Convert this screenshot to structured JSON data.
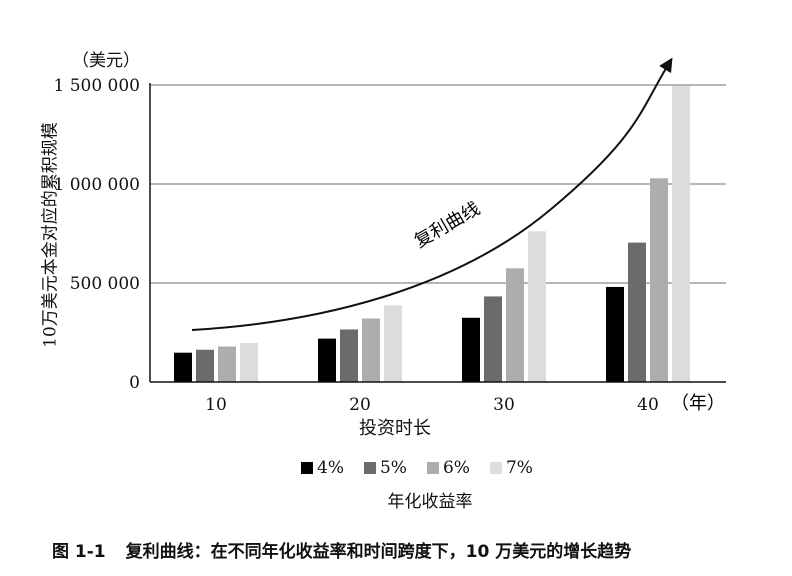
{
  "figure": {
    "y_unit": "（美元）",
    "y_title": "10万美元本金对应的累积规模",
    "x_title": "投资时长",
    "x_unit": "（年）",
    "legend_title": "年化收益率",
    "curve_label": "复利曲线",
    "caption_number": "图 1-1",
    "caption_text": "复利曲线：在不同年化收益率和时间跨度下，10 万美元的增长趋势"
  },
  "chart_data": {
    "type": "bar",
    "title": "",
    "xlabel": "投资时长",
    "ylabel": "10万美元本金对应的累积规模",
    "categories": [
      "10",
      "20",
      "30",
      "40"
    ],
    "ylim": [
      0,
      1500000
    ],
    "yticks": [
      0,
      500000,
      1000000,
      1500000
    ],
    "ytick_labels": [
      "0",
      "500 000",
      "1 000 000",
      "1 500 000"
    ],
    "grid": "horizontal",
    "legend_position": "bottom",
    "series": [
      {
        "name": "4%",
        "color": "#000000",
        "values": [
          148024,
          219112,
          324340,
          480102
        ]
      },
      {
        "name": "5%",
        "color": "#6b6b6b",
        "values": [
          162889,
          265330,
          432194,
          703999
        ]
      },
      {
        "name": "6%",
        "color": "#adadad",
        "values": [
          179085,
          320714,
          574349,
          1028572
        ]
      },
      {
        "name": "7%",
        "color": "#dcdcdc",
        "values": [
          196715,
          386968,
          761226,
          1497446
        ]
      }
    ]
  }
}
